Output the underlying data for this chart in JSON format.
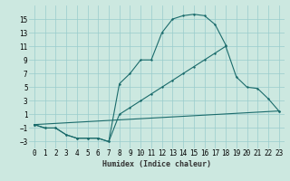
{
  "xlabel": "Humidex (Indice chaleur)",
  "bg_color": "#cce8e0",
  "grid_color": "#99cccc",
  "line_color": "#1a6b6b",
  "xlim": [
    -0.5,
    23.5
  ],
  "ylim": [
    -4,
    17
  ],
  "yticks": [
    -3,
    -1,
    1,
    3,
    5,
    7,
    9,
    11,
    13,
    15
  ],
  "xticks": [
    0,
    1,
    2,
    3,
    4,
    5,
    6,
    7,
    8,
    9,
    10,
    11,
    12,
    13,
    14,
    15,
    16,
    17,
    18,
    19,
    20,
    21,
    22,
    23
  ],
  "line1_x": [
    0,
    1,
    2,
    3,
    4,
    5,
    6,
    7,
    8,
    9,
    10,
    11,
    12,
    13,
    14,
    15,
    16,
    17,
    18
  ],
  "line1_y": [
    -0.5,
    -1,
    -1,
    -2,
    -2.5,
    -2.5,
    -2.5,
    -3,
    5.5,
    7,
    9,
    9,
    13,
    15,
    15.5,
    15.7,
    15.5,
    14.2,
    11.2
  ],
  "line2_x": [
    0,
    1,
    2,
    3,
    4,
    5,
    6,
    7,
    8,
    9,
    10,
    11,
    12,
    13,
    14,
    15,
    16,
    17,
    18,
    19,
    20,
    21,
    22,
    23
  ],
  "line2_y": [
    -0.5,
    -1,
    -1,
    -2,
    -2.5,
    -2.5,
    -2.5,
    -3,
    1,
    2,
    3,
    4,
    5,
    6,
    7,
    8,
    9,
    10,
    11,
    6.5,
    5,
    4.8,
    3.3,
    1.5
  ],
  "line3_x": [
    0,
    23
  ],
  "line3_y": [
    -0.5,
    1.5
  ]
}
